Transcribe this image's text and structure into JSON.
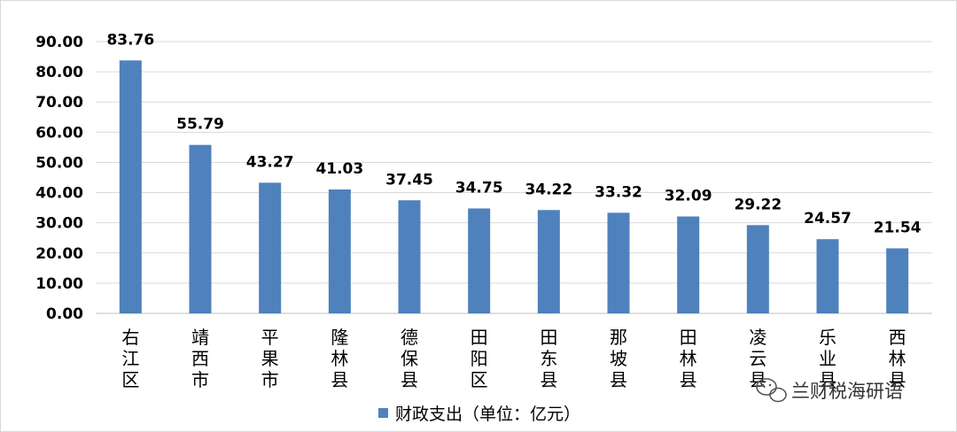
{
  "chart_data": {
    "type": "bar",
    "categories": [
      "右江区",
      "靖西市",
      "平果市",
      "隆林县",
      "德保县",
      "田阳区",
      "田东县",
      "那坡县",
      "田林县",
      "凌云县",
      "乐业县",
      "西林县"
    ],
    "series": [
      {
        "name": "财政支出（单位：亿元）",
        "values": [
          83.76,
          55.79,
          43.27,
          41.03,
          37.45,
          34.75,
          34.22,
          33.32,
          32.09,
          29.22,
          24.57,
          21.54
        ]
      }
    ],
    "data_labels": [
      "83.76",
      "55.79",
      "43.27",
      "41.03",
      "37.45",
      "34.75",
      "34.22",
      "33.32",
      "32.09",
      "29.22",
      "24.57",
      "21.54"
    ],
    "y_ticks": [
      "0.00",
      "10.00",
      "20.00",
      "30.00",
      "40.00",
      "50.00",
      "60.00",
      "70.00",
      "80.00",
      "90.00"
    ],
    "ylim": [
      0,
      90
    ],
    "grid": true,
    "legend_position": "bottom",
    "colors": {
      "bar": "#4f81bd",
      "grid": "#d9d9d9"
    }
  },
  "watermark": {
    "text": "兰财税海研语",
    "icon": "wechat-icon"
  }
}
